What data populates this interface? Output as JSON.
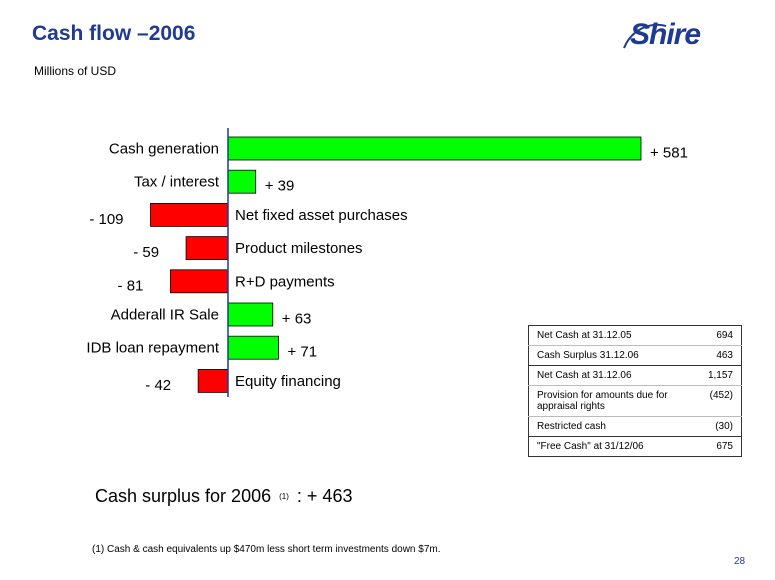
{
  "header": {
    "title": "Cash flow –2006",
    "subtitle": "Millions of USD",
    "logo_text": "Shire"
  },
  "chart_data": {
    "type": "bar",
    "orientation": "horizontal",
    "categories": [
      "Cash generation",
      "Tax / interest",
      "Net fixed asset purchases",
      "Product milestones",
      "R+D payments",
      "Adderall IR Sale",
      "IDB loan repayment",
      "Equity financing"
    ],
    "values": [
      581,
      39,
      -109,
      -59,
      -81,
      63,
      71,
      -42
    ],
    "data_labels": [
      "+ 581",
      "+ 39",
      "- 109",
      "- 59",
      "- 81",
      "+ 63",
      "+ 71",
      "- 42"
    ],
    "colors": {
      "positive": "#00ff00",
      "negative": "#ff0000",
      "axis": "#1f3a93"
    }
  },
  "summary": {
    "prefix": "Cash surplus for 2006",
    "note_marker": "(1)",
    "suffix": ": + 463"
  },
  "table": {
    "rows": [
      {
        "label": "Net Cash at 31.12.05",
        "value": "694"
      },
      {
        "label": "Cash Surplus 31.12.06",
        "value": "463"
      },
      {
        "label": "Net Cash at 31.12.06",
        "value": "1,157"
      },
      {
        "label": "Provision for amounts due for appraisal rights",
        "value": "(452)"
      },
      {
        "label": "Restricted cash",
        "value": "(30)"
      },
      {
        "label": "\"Free Cash\" at 31/12/06",
        "value": "675"
      }
    ]
  },
  "footnote": "(1) Cash & cash equivalents up $470m less short term investments down $7m.",
  "page_number": "28"
}
